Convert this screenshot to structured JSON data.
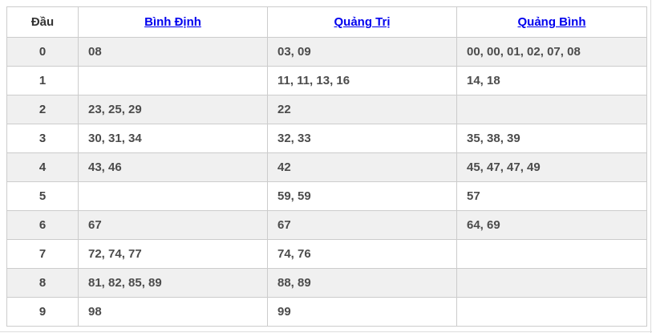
{
  "colors": {
    "link_blue": "#0000ee",
    "row_alt_background": "#f0f0f0",
    "cell_border": "#cccccc",
    "number_text": "#4c4c4c"
  },
  "table": {
    "headers": [
      {
        "label": "Đầu"
      },
      {
        "label": "Bình Định"
      },
      {
        "label": "Quảng Trị"
      },
      {
        "label": "Quảng Bình"
      }
    ],
    "rows": [
      {
        "head": "0",
        "binh_dinh": "08",
        "quang_tri": "03, 09",
        "quang_binh": "00, 00, 01, 02, 07, 08"
      },
      {
        "head": "1",
        "binh_dinh": "",
        "quang_tri": "11, 11, 13, 16",
        "quang_binh": "14, 18"
      },
      {
        "head": "2",
        "binh_dinh": "23, 25, 29",
        "quang_tri": "22",
        "quang_binh": ""
      },
      {
        "head": "3",
        "binh_dinh": "30, 31, 34",
        "quang_tri": "32, 33",
        "quang_binh": "35, 38, 39"
      },
      {
        "head": "4",
        "binh_dinh": "43, 46",
        "quang_tri": "42",
        "quang_binh": "45, 47, 47, 49"
      },
      {
        "head": "5",
        "binh_dinh": "",
        "quang_tri": "59, 59",
        "quang_binh": "57"
      },
      {
        "head": "6",
        "binh_dinh": "67",
        "quang_tri": "67",
        "quang_binh": "64, 69"
      },
      {
        "head": "7",
        "binh_dinh": "72, 74, 77",
        "quang_tri": "74, 76",
        "quang_binh": ""
      },
      {
        "head": "8",
        "binh_dinh": "81, 82, 85, 89",
        "quang_tri": "88, 89",
        "quang_binh": ""
      },
      {
        "head": "9",
        "binh_dinh": "98",
        "quang_tri": "99",
        "quang_binh": ""
      }
    ]
  }
}
